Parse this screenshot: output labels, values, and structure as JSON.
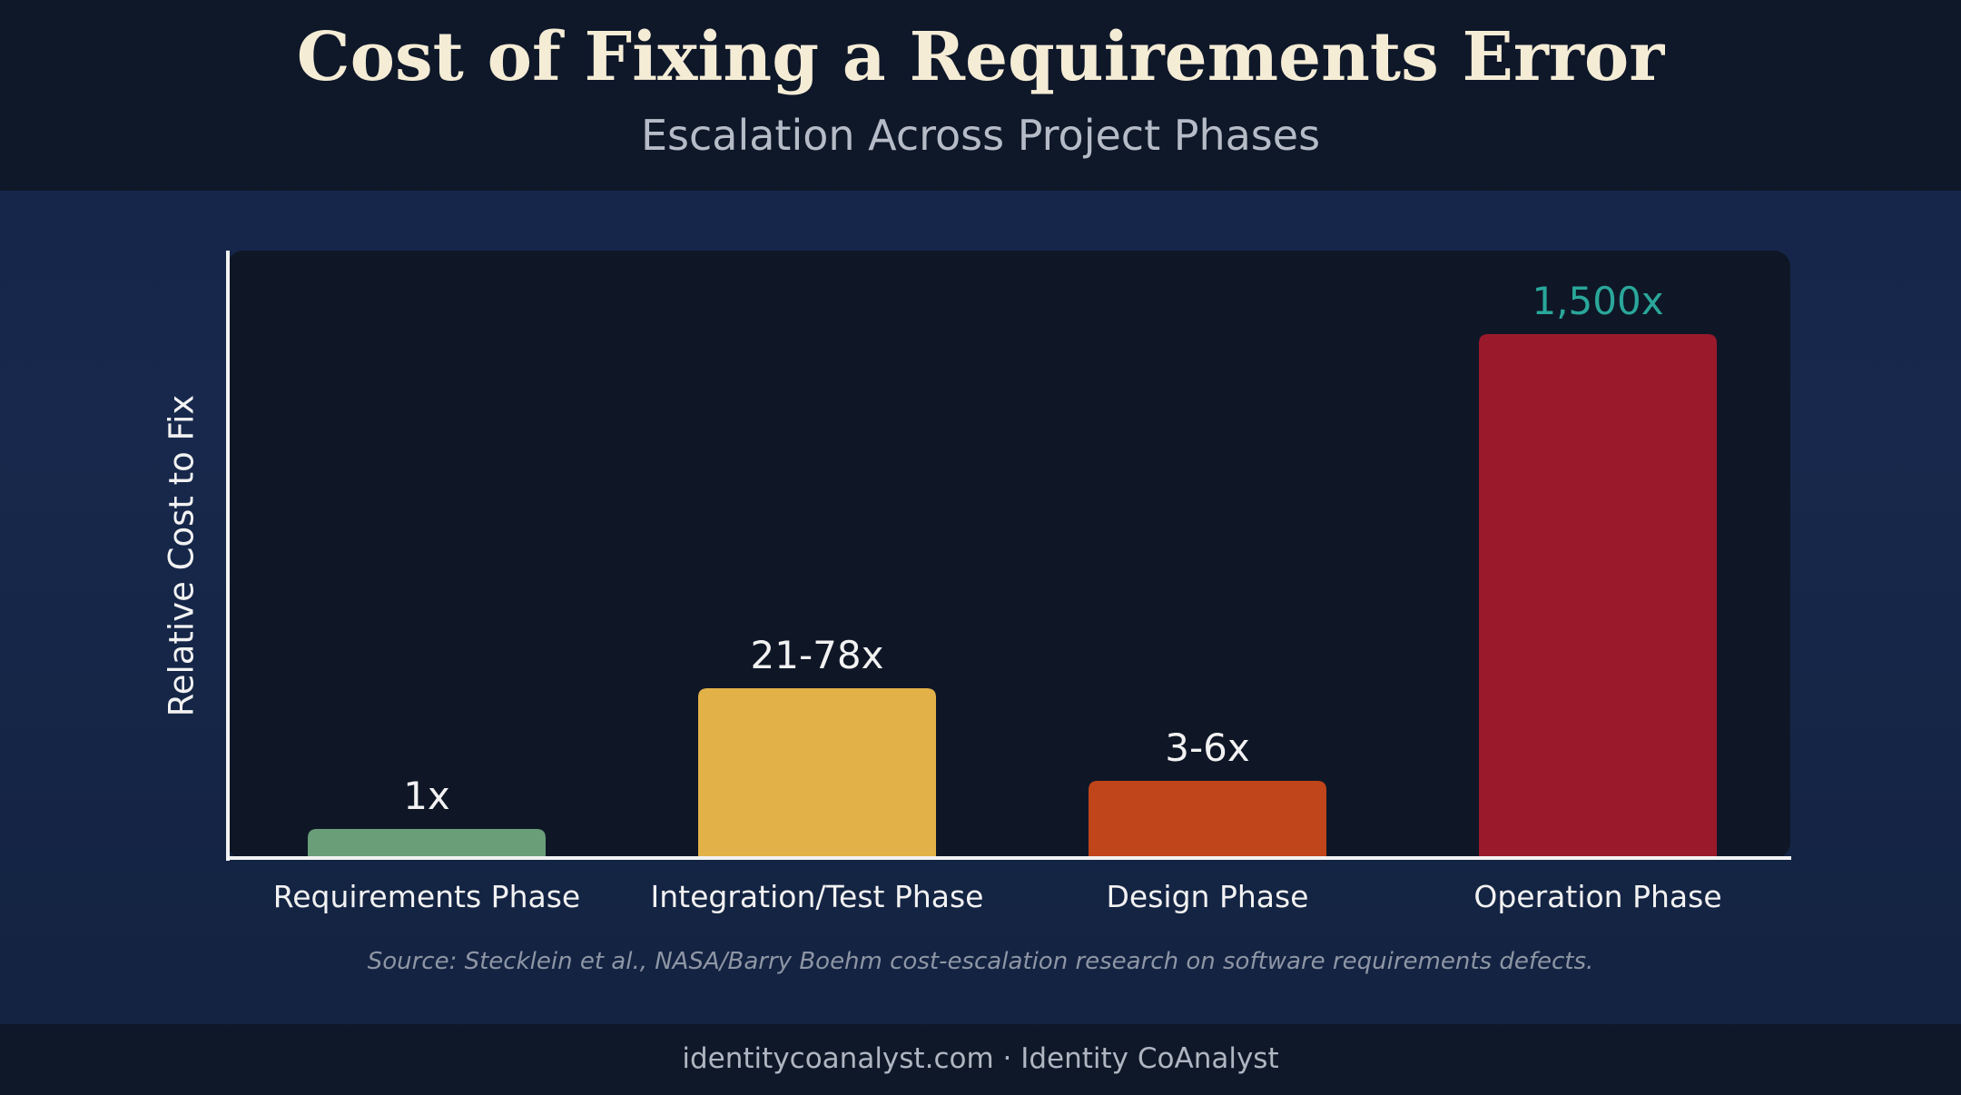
{
  "chart_data": {
    "type": "bar",
    "title": "Cost of Fixing a Requirements Error",
    "subtitle": "Escalation Across Project Phases",
    "xlabel": "",
    "ylabel": "Relative Cost to Fix",
    "categories": [
      "Requirements Phase",
      "Integration/Test Phase",
      "Design Phase",
      "Operation Phase"
    ],
    "values": [
      1,
      78,
      6,
      1500
    ],
    "value_labels": [
      "1x",
      "21-78x",
      "3-6x",
      "1,500x"
    ],
    "colors": [
      "#6a9e78",
      "#e2b148",
      "#c1451a",
      "#9a1a2c"
    ],
    "value_label_colors": [
      "#f2f2f2",
      "#f2f2f2",
      "#f2f2f2",
      "#2aa79a"
    ],
    "scale": "log",
    "grid": false,
    "legend": "none"
  },
  "source": "Source: Stecklein et al., NASA/Barry Boehm cost-escalation research on software requirements defects.",
  "footer": "identitycoanalyst.com · Identity CoAnalyst"
}
